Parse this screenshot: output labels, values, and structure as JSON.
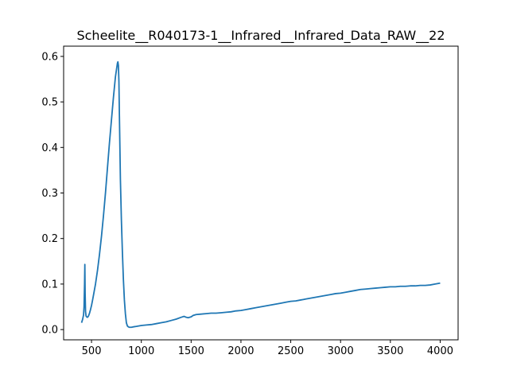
{
  "chart_data": {
    "type": "line",
    "title": "Scheelite__R040173-1__Infrared__Infrared_Data_RAW__22",
    "xlabel": "",
    "ylabel": "",
    "xlim": [
      220,
      4180
    ],
    "ylim": [
      -0.0225,
      0.6225
    ],
    "x_ticks": [
      500,
      1000,
      1500,
      2000,
      2500,
      3000,
      3500,
      4000
    ],
    "y_ticks": [
      0.0,
      0.1,
      0.2,
      0.3,
      0.4,
      0.5,
      0.6
    ],
    "y_tick_labels": [
      "0.0",
      "0.1",
      "0.2",
      "0.3",
      "0.4",
      "0.5",
      "0.6"
    ],
    "grid": false,
    "legend": "none",
    "series": [
      {
        "color": "#1f77b4",
        "x": [
          400,
          410,
          420,
          425,
          430,
          433,
          436,
          440,
          445,
          450,
          460,
          470,
          480,
          490,
          500,
          510,
          520,
          540,
          560,
          580,
          600,
          620,
          640,
          660,
          680,
          700,
          720,
          740,
          750,
          760,
          765,
          770,
          775,
          780,
          785,
          790,
          800,
          810,
          820,
          830,
          840,
          850,
          860,
          870,
          880,
          890,
          900,
          920,
          950,
          1000,
          1050,
          1100,
          1150,
          1200,
          1250,
          1300,
          1350,
          1400,
          1430,
          1450,
          1470,
          1500,
          1520,
          1550,
          1600,
          1650,
          1700,
          1750,
          1800,
          1850,
          1900,
          1950,
          2000,
          2050,
          2100,
          2150,
          2200,
          2250,
          2300,
          2350,
          2400,
          2450,
          2500,
          2550,
          2600,
          2650,
          2700,
          2750,
          2800,
          2850,
          2900,
          2950,
          3000,
          3050,
          3100,
          3150,
          3200,
          3250,
          3300,
          3350,
          3400,
          3450,
          3500,
          3550,
          3600,
          3650,
          3700,
          3750,
          3800,
          3850,
          3900,
          3950,
          4000
        ],
        "values": [
          0.015,
          0.022,
          0.032,
          0.05,
          0.1,
          0.143,
          0.08,
          0.04,
          0.03,
          0.028,
          0.027,
          0.03,
          0.036,
          0.044,
          0.053,
          0.064,
          0.076,
          0.1,
          0.13,
          0.165,
          0.205,
          0.25,
          0.3,
          0.355,
          0.41,
          0.46,
          0.51,
          0.555,
          0.57,
          0.585,
          0.588,
          0.58,
          0.545,
          0.47,
          0.4,
          0.33,
          0.24,
          0.17,
          0.11,
          0.065,
          0.035,
          0.015,
          0.008,
          0.006,
          0.005,
          0.005,
          0.005,
          0.006,
          0.007,
          0.009,
          0.01,
          0.011,
          0.013,
          0.015,
          0.017,
          0.02,
          0.023,
          0.027,
          0.029,
          0.027,
          0.026,
          0.028,
          0.031,
          0.033,
          0.034,
          0.035,
          0.036,
          0.036,
          0.037,
          0.038,
          0.039,
          0.041,
          0.042,
          0.044,
          0.046,
          0.048,
          0.05,
          0.052,
          0.054,
          0.056,
          0.058,
          0.06,
          0.062,
          0.063,
          0.065,
          0.067,
          0.069,
          0.071,
          0.073,
          0.075,
          0.077,
          0.079,
          0.08,
          0.082,
          0.084,
          0.086,
          0.088,
          0.089,
          0.09,
          0.091,
          0.092,
          0.093,
          0.094,
          0.094,
          0.095,
          0.095,
          0.096,
          0.096,
          0.097,
          0.097,
          0.098,
          0.1,
          0.102
        ]
      }
    ]
  }
}
